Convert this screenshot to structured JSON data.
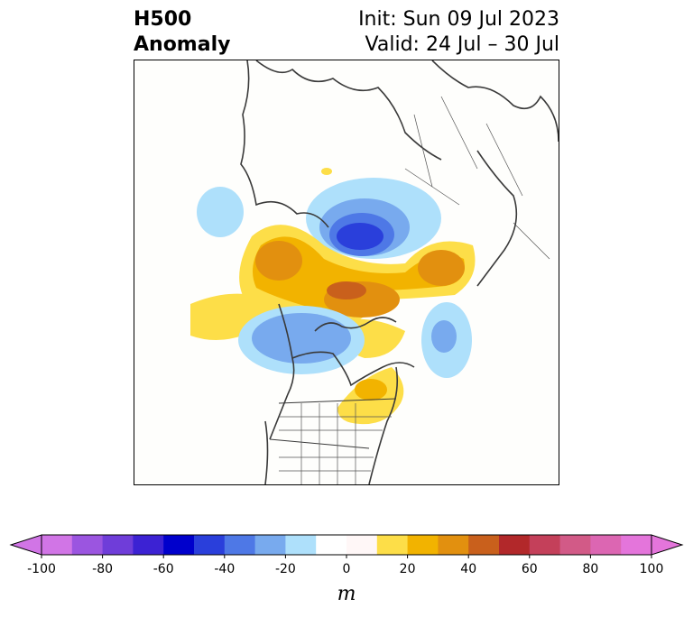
{
  "title": {
    "left_line1": "H500",
    "left_line2": "Anomaly",
    "right_line1": "Init: Sun 09 Jul 2023",
    "right_line2": "Valid: 24 Jul – 30 Jul"
  },
  "colorbar": {
    "units": "m",
    "min": -100,
    "max": 100,
    "step": 10,
    "extend": "both",
    "tick_labels": [
      "-100",
      "-80",
      "-60",
      "-40",
      "-20",
      "0",
      "20",
      "40",
      "60",
      "80",
      "100"
    ],
    "colors": [
      "#d175e6",
      "#9b55e0",
      "#6f3dd9",
      "#3c22d3",
      "#0000cc",
      "#2a3fdb",
      "#4e78e6",
      "#78aaee",
      "#aee0fb",
      "#ffffff",
      "#fff7f7",
      "#fdde48",
      "#f2b300",
      "#e2900f",
      "#c9601c",
      "#b2282a",
      "#c4405a",
      "#d25a87",
      "#dc66b2",
      "#e475db"
    ]
  },
  "anomaly_features": [
    {
      "name": "negative-center-hudson-bay",
      "value": -70
    },
    {
      "name": "negative-anomaly-west-pacific",
      "value": -20
    },
    {
      "name": "negative-anomaly-western-canada",
      "value": -40
    },
    {
      "name": "negative-anomaly-north-atlantic",
      "value": -30
    },
    {
      "name": "positive-anomaly-greenland",
      "value": 50
    },
    {
      "name": "positive-anomaly-siberia",
      "value": 40
    },
    {
      "name": "positive-anomaly-scandinavia",
      "value": 30
    },
    {
      "name": "positive-anomaly-eastern-us",
      "value": 20
    }
  ]
}
